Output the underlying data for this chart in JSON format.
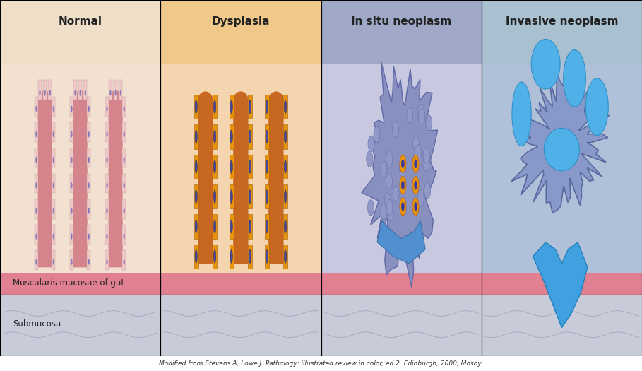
{
  "panels": [
    "Normal",
    "Dysplasia",
    "In situ neoplasm",
    "Invasive neoplasm"
  ],
  "panel_bg_colors": [
    "#f2e0d0",
    "#f5d5b0",
    "#c8c8e0",
    "#b0c0d8"
  ],
  "panel_top_colors": [
    "#f0dfc8",
    "#f0c88a",
    "#a0a8c8",
    "#a8c0d0"
  ],
  "muscularis_color": "#e08090",
  "submucosa_color": "#c8ccd8",
  "muscularis_label": "Muscularis mucosae of gut",
  "submucosa_label": "Submucosa",
  "caption": "Modified from Stevens A, Lowe J. Pathology: illustrated review in color, ed 2, Edinburgh, 2000, Mosby.",
  "fig_width": 9.09,
  "fig_height": 5.25,
  "normal_villus_color": "#d4848a",
  "normal_cell_color": "#f0c8c8",
  "normal_nucleus_color": "#8878b8",
  "dysplasia_villus_color": "#c86820",
  "dysplasia_cell_color": "#e8940a",
  "dysplasia_nucleus_color": "#4848a0",
  "insitu_cell_color": "#8890c0",
  "insitu_nucleus_color": "#4040a0",
  "invasive_color": "#5090d0",
  "invasive_dark": "#7078b8",
  "border_color": "#888888",
  "title_fontsize": 11,
  "label_fontsize": 8.5,
  "caption_fontsize": 6.5
}
